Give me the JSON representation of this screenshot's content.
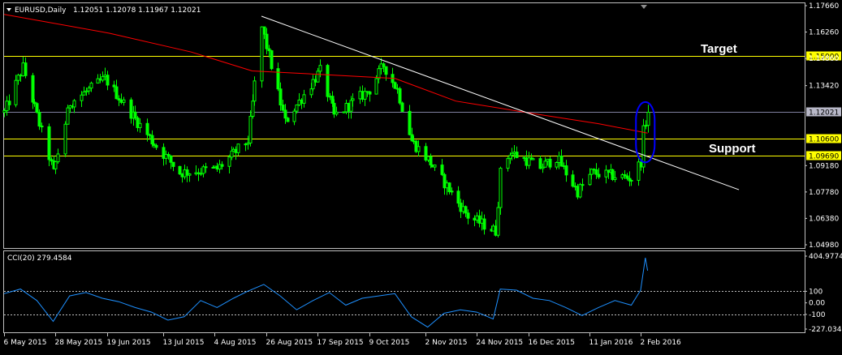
{
  "header": {
    "symbol": "EURUSD,Daily",
    "ohlc": "1.12051 1.12078 1.11967 1.12021"
  },
  "annotations": {
    "target_label": "Target",
    "support_label": "Support"
  },
  "cci_panel": {
    "title": "CCI(20) 279.4584"
  },
  "colors": {
    "background": "#000000",
    "frame": "#c0c0c0",
    "candle": "#00ff00",
    "ma_line": "#ff0000",
    "trendline": "#ffffff",
    "horizontal_levels": "#ffff00",
    "current_price_line": "#8080a0",
    "cci_line": "#1e90ff",
    "highlight_ellipse": "#0000ff",
    "price_tag_bg": "#ffff00"
  },
  "chart_data": [
    {
      "type": "candlestick",
      "title": "EURUSD,Daily",
      "ylim": [
        1.0498,
        1.1766
      ],
      "y_ticks": [
        "1.17660",
        "1.16260",
        "1.14860",
        "1.13420",
        "1.12021",
        "1.10600",
        "1.09690",
        "1.09180",
        "1.07780",
        "1.06380",
        "1.04980"
      ],
      "x_tick_labels": [
        "6 May 2015",
        "28 May 2015",
        "19 Jun 2015",
        "13 Jul 2015",
        "4 Aug 2015",
        "26 Aug 2015",
        "17 Sep 2015",
        "9 Oct 2015",
        "2 Nov 2015",
        "24 Nov 2015",
        "16 Dec 2015",
        "11 Jan 2016",
        "2 Feb 2016"
      ],
      "x_tick_dates": [
        "2015-05-06",
        "2015-05-28",
        "2015-06-19",
        "2015-07-13",
        "2015-08-04",
        "2015-08-26",
        "2015-09-17",
        "2015-10-09",
        "2015-11-02",
        "2015-11-24",
        "2015-12-16",
        "2016-01-11",
        "2016-02-02"
      ],
      "anchors": [
        {
          "date": "2015-05-06",
          "close": 1.12
        },
        {
          "date": "2015-05-14",
          "close": 1.144
        },
        {
          "date": "2015-05-27",
          "close": 1.088
        },
        {
          "date": "2015-06-03",
          "close": 1.125
        },
        {
          "date": "2015-06-18",
          "close": 1.138
        },
        {
          "date": "2015-07-08",
          "close": 1.105
        },
        {
          "date": "2015-07-20",
          "close": 1.088
        },
        {
          "date": "2015-08-05",
          "close": 1.09
        },
        {
          "date": "2015-08-18",
          "close": 1.105
        },
        {
          "date": "2015-08-24",
          "close": 1.165
        },
        {
          "date": "2015-09-03",
          "close": 1.115
        },
        {
          "date": "2015-09-18",
          "close": 1.142
        },
        {
          "date": "2015-09-24",
          "close": 1.118
        },
        {
          "date": "2015-10-09",
          "close": 1.132
        },
        {
          "date": "2015-10-15",
          "close": 1.145
        },
        {
          "date": "2015-10-21",
          "close": 1.132
        },
        {
          "date": "2015-10-27",
          "close": 1.105
        },
        {
          "date": "2015-11-03",
          "close": 1.095
        },
        {
          "date": "2015-11-20",
          "close": 1.065
        },
        {
          "date": "2015-12-02",
          "close": 1.057
        },
        {
          "date": "2015-12-04",
          "close": 1.088
        },
        {
          "date": "2015-12-08",
          "close": 1.099
        },
        {
          "date": "2015-12-21",
          "close": 1.091
        },
        {
          "date": "2015-12-28",
          "close": 1.096
        },
        {
          "date": "2016-01-06",
          "close": 1.078
        },
        {
          "date": "2016-01-12",
          "close": 1.088
        },
        {
          "date": "2016-01-29",
          "close": 1.085
        },
        {
          "date": "2016-02-02",
          "close": 1.094
        },
        {
          "date": "2016-02-03",
          "close": 1.11
        },
        {
          "date": "2016-02-05",
          "close": 1.1202
        }
      ],
      "moving_average": [
        {
          "date": "2015-05-06",
          "value": 1.172
        },
        {
          "date": "2015-06-20",
          "value": 1.162
        },
        {
          "date": "2015-07-25",
          "value": 1.152
        },
        {
          "date": "2015-08-20",
          "value": 1.142
        },
        {
          "date": "2015-09-20",
          "value": 1.14
        },
        {
          "date": "2015-10-20",
          "value": 1.138
        },
        {
          "date": "2015-11-15",
          "value": 1.126
        },
        {
          "date": "2015-12-15",
          "value": 1.12
        },
        {
          "date": "2016-01-15",
          "value": 1.114
        },
        {
          "date": "2016-02-05",
          "value": 1.109
        }
      ],
      "trendline": {
        "start": {
          "date": "2015-08-24",
          "value": 1.171
        },
        "end": {
          "date": "2016-03-15",
          "value": 1.079
        }
      },
      "horizontal_levels": [
        {
          "value": 1.15,
          "label": "1.15000",
          "color": "#ffff00"
        },
        {
          "value": 1.106,
          "label": "1.10600",
          "color": "#ffff00"
        },
        {
          "value": 1.0969,
          "label": "1.09690",
          "color": "#ffff00"
        },
        {
          "value": 1.12021,
          "label": "1.12021",
          "color": "#8080a0"
        }
      ],
      "highlight": {
        "date_start": "2016-01-31",
        "date_end": "2016-02-08",
        "value_low": 1.0935,
        "value_high": 1.1255
      }
    },
    {
      "type": "line",
      "title": "CCI(20) 279.4584",
      "ylim": [
        -227.0348,
        404.9774
      ],
      "y_ticks": [
        "404.9774",
        "100",
        "0.00",
        "-100",
        "-227.0348"
      ],
      "dashed_levels": [
        100,
        -100
      ],
      "points": [
        {
          "date": "2015-05-06",
          "value": 80
        },
        {
          "date": "2015-05-13",
          "value": 120
        },
        {
          "date": "2015-05-20",
          "value": 20
        },
        {
          "date": "2015-05-27",
          "value": -160
        },
        {
          "date": "2015-06-03",
          "value": 60
        },
        {
          "date": "2015-06-10",
          "value": 90
        },
        {
          "date": "2015-06-17",
          "value": 40
        },
        {
          "date": "2015-06-24",
          "value": 10
        },
        {
          "date": "2015-07-01",
          "value": -40
        },
        {
          "date": "2015-07-08",
          "value": -80
        },
        {
          "date": "2015-07-15",
          "value": -150
        },
        {
          "date": "2015-07-22",
          "value": -120
        },
        {
          "date": "2015-07-29",
          "value": 20
        },
        {
          "date": "2015-08-05",
          "value": -40
        },
        {
          "date": "2015-08-12",
          "value": 40
        },
        {
          "date": "2015-08-18",
          "value": 100
        },
        {
          "date": "2015-08-25",
          "value": 160
        },
        {
          "date": "2015-09-01",
          "value": 60
        },
        {
          "date": "2015-09-08",
          "value": -60
        },
        {
          "date": "2015-09-15",
          "value": 20
        },
        {
          "date": "2015-09-22",
          "value": 90
        },
        {
          "date": "2015-09-29",
          "value": -20
        },
        {
          "date": "2015-10-06",
          "value": 40
        },
        {
          "date": "2015-10-13",
          "value": 60
        },
        {
          "date": "2015-10-20",
          "value": 80
        },
        {
          "date": "2015-10-27",
          "value": -120
        },
        {
          "date": "2015-11-03",
          "value": -210
        },
        {
          "date": "2015-11-10",
          "value": -90
        },
        {
          "date": "2015-11-17",
          "value": -60
        },
        {
          "date": "2015-11-24",
          "value": -80
        },
        {
          "date": "2015-12-01",
          "value": -140
        },
        {
          "date": "2015-12-04",
          "value": 120
        },
        {
          "date": "2015-12-11",
          "value": 110
        },
        {
          "date": "2015-12-18",
          "value": 40
        },
        {
          "date": "2015-12-25",
          "value": 20
        },
        {
          "date": "2016-01-01",
          "value": -40
        },
        {
          "date": "2016-01-08",
          "value": -110
        },
        {
          "date": "2016-01-15",
          "value": -40
        },
        {
          "date": "2016-01-22",
          "value": 20
        },
        {
          "date": "2016-01-29",
          "value": -20
        },
        {
          "date": "2016-02-02",
          "value": 110
        },
        {
          "date": "2016-02-04",
          "value": 390
        },
        {
          "date": "2016-02-05",
          "value": 279.4584
        }
      ]
    }
  ]
}
